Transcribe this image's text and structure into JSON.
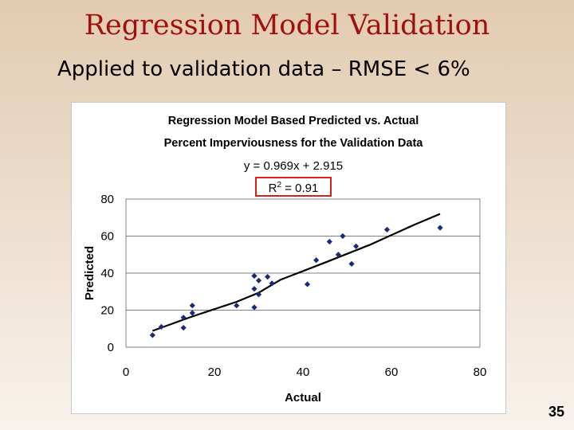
{
  "slide": {
    "title": "Regression Model Validation",
    "subtitle": "Applied to validation data – RMSE < 6%",
    "page_number": "35"
  },
  "colors": {
    "title": "#a01010",
    "points": "#1a2a7a",
    "trendline": "#000000",
    "highlight_box": "#d42020"
  },
  "chart_data": {
    "type": "scatter",
    "title_lines": [
      "Regression Model Based Predicted vs. Actual",
      "Percent Imperviousness for the Validation Data"
    ],
    "equation": "y = 0.969x + 2.915",
    "r_squared_prefix": "R",
    "r_squared_exponent": "2",
    "r_squared_suffix": " = 0.91",
    "xlabel": "Actual",
    "ylabel": "Predicted",
    "xlim": [
      0,
      80
    ],
    "ylim": [
      0,
      80
    ],
    "xticks": [
      0,
      20,
      40,
      60,
      80
    ],
    "yticks": [
      0,
      20,
      40,
      60,
      80
    ],
    "ygrid": true,
    "points": [
      [
        6,
        6.5
      ],
      [
        8,
        11
      ],
      [
        13,
        10.5
      ],
      [
        13,
        16
      ],
      [
        15,
        18.5
      ],
      [
        15,
        22.5
      ],
      [
        25,
        22.5
      ],
      [
        29,
        21.5
      ],
      [
        29,
        31.5
      ],
      [
        29,
        38.5
      ],
      [
        30,
        28.5
      ],
      [
        30,
        36
      ],
      [
        32,
        38
      ],
      [
        33,
        34.5
      ],
      [
        41,
        34
      ],
      [
        43,
        47
      ],
      [
        46,
        57
      ],
      [
        48,
        50
      ],
      [
        49,
        60
      ],
      [
        51,
        45
      ],
      [
        52,
        54.5
      ],
      [
        59,
        63.5
      ],
      [
        71,
        64.5
      ]
    ],
    "trendline": [
      [
        6,
        8.8
      ],
      [
        15,
        16.6
      ],
      [
        25,
        24.5
      ],
      [
        30,
        29.4
      ],
      [
        35,
        36.5
      ],
      [
        45,
        45.7
      ],
      [
        55,
        55.2
      ],
      [
        65,
        66
      ],
      [
        71,
        72
      ]
    ]
  }
}
